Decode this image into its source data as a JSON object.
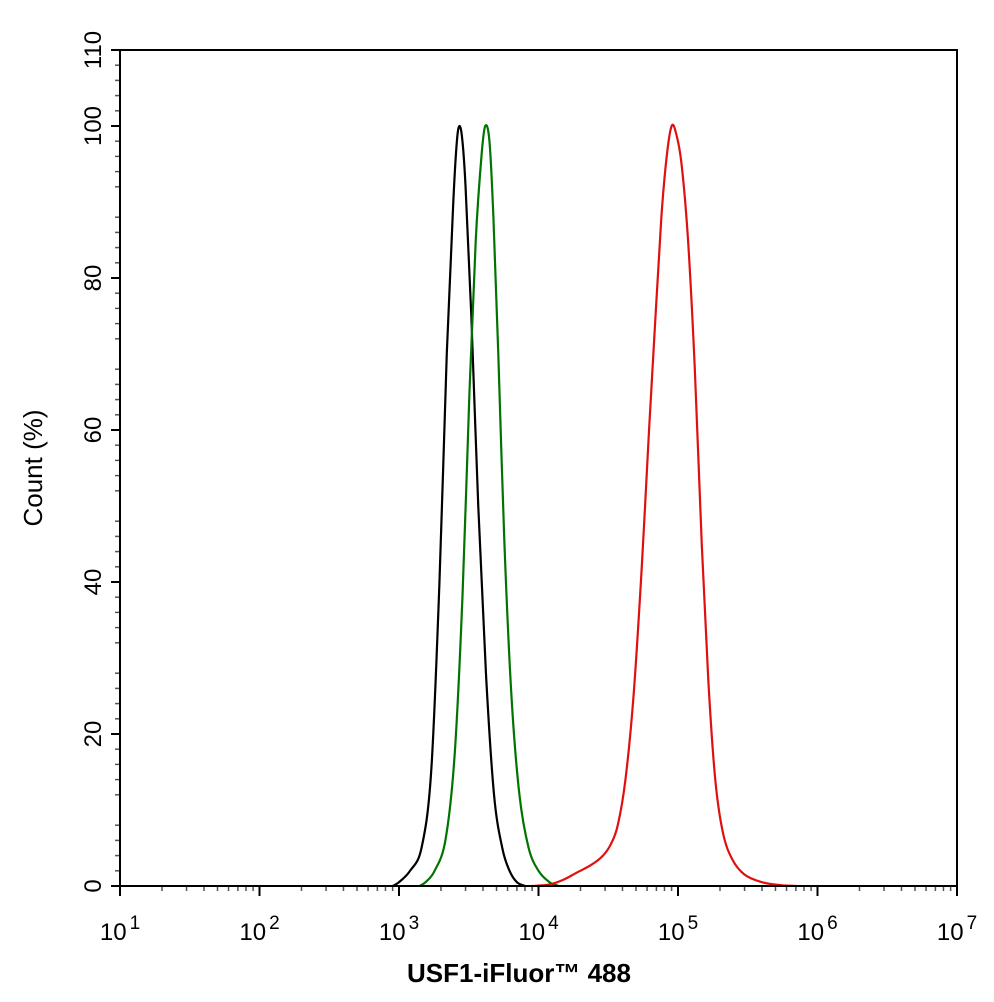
{
  "chart_data": {
    "type": "line",
    "title": "",
    "xlabel": "USF1-iFluor™ 488",
    "ylabel": "Count  (%)",
    "xscale": "log",
    "xlim": [
      10,
      10000000
    ],
    "ylim": [
      0,
      110
    ],
    "x_ticks": [
      {
        "value": 10,
        "base": "10",
        "exp": "1"
      },
      {
        "value": 100,
        "base": "10",
        "exp": "2"
      },
      {
        "value": 1000,
        "base": "10",
        "exp": "3"
      },
      {
        "value": 10000,
        "base": "10",
        "exp": "4"
      },
      {
        "value": 100000,
        "base": "10",
        "exp": "5"
      },
      {
        "value": 1000000,
        "base": "10",
        "exp": "6"
      },
      {
        "value": 10000000,
        "base": "10",
        "exp": "7"
      }
    ],
    "y_ticks": [
      0,
      20,
      40,
      60,
      80,
      100,
      110
    ],
    "grid": false,
    "legend": "none",
    "series": [
      {
        "color": "#000000",
        "points": [
          [
            900,
            0
          ],
          [
            1000,
            0.5
          ],
          [
            1200,
            2
          ],
          [
            1450,
            5
          ],
          [
            1700,
            15
          ],
          [
            1950,
            40
          ],
          [
            2200,
            70
          ],
          [
            2450,
            90
          ],
          [
            2600,
            98
          ],
          [
            2720,
            100
          ],
          [
            2850,
            98
          ],
          [
            3000,
            92
          ],
          [
            3300,
            75
          ],
          [
            3700,
            50
          ],
          [
            4200,
            28
          ],
          [
            4800,
            12
          ],
          [
            5500,
            5
          ],
          [
            6200,
            2
          ],
          [
            7000,
            0.5
          ],
          [
            8000,
            0
          ]
        ]
      },
      {
        "color": "#007400",
        "points": [
          [
            1400,
            0
          ],
          [
            1550,
            0.5
          ],
          [
            1800,
            2
          ],
          [
            2150,
            6
          ],
          [
            2500,
            17
          ],
          [
            2850,
            38
          ],
          [
            3200,
            65
          ],
          [
            3550,
            85
          ],
          [
            3900,
            96
          ],
          [
            4150,
            100
          ],
          [
            4450,
            98
          ],
          [
            4750,
            88
          ],
          [
            5150,
            70
          ],
          [
            5700,
            45
          ],
          [
            6400,
            25
          ],
          [
            7300,
            12
          ],
          [
            8500,
            5
          ],
          [
            10000,
            2
          ],
          [
            12000,
            0.5
          ],
          [
            14000,
            0
          ]
        ]
      },
      {
        "color": "#e01010",
        "points": [
          [
            9000,
            0
          ],
          [
            12000,
            0.2
          ],
          [
            15000,
            0.8
          ],
          [
            19000,
            1.8
          ],
          [
            24000,
            2.8
          ],
          [
            29000,
            4
          ],
          [
            33000,
            5.5
          ],
          [
            37000,
            8
          ],
          [
            42000,
            14
          ],
          [
            48000,
            25
          ],
          [
            55000,
            42
          ],
          [
            62000,
            60
          ],
          [
            69000,
            75
          ],
          [
            76000,
            88
          ],
          [
            83000,
            96
          ],
          [
            90000,
            100
          ],
          [
            97000,
            99
          ],
          [
            106000,
            95
          ],
          [
            118000,
            85
          ],
          [
            132000,
            68
          ],
          [
            148000,
            45
          ],
          [
            165000,
            27
          ],
          [
            185000,
            14
          ],
          [
            210000,
            7
          ],
          [
            245000,
            3.5
          ],
          [
            300000,
            1.5
          ],
          [
            400000,
            0.5
          ],
          [
            550000,
            0.1
          ],
          [
            700000,
            0
          ]
        ]
      }
    ]
  }
}
